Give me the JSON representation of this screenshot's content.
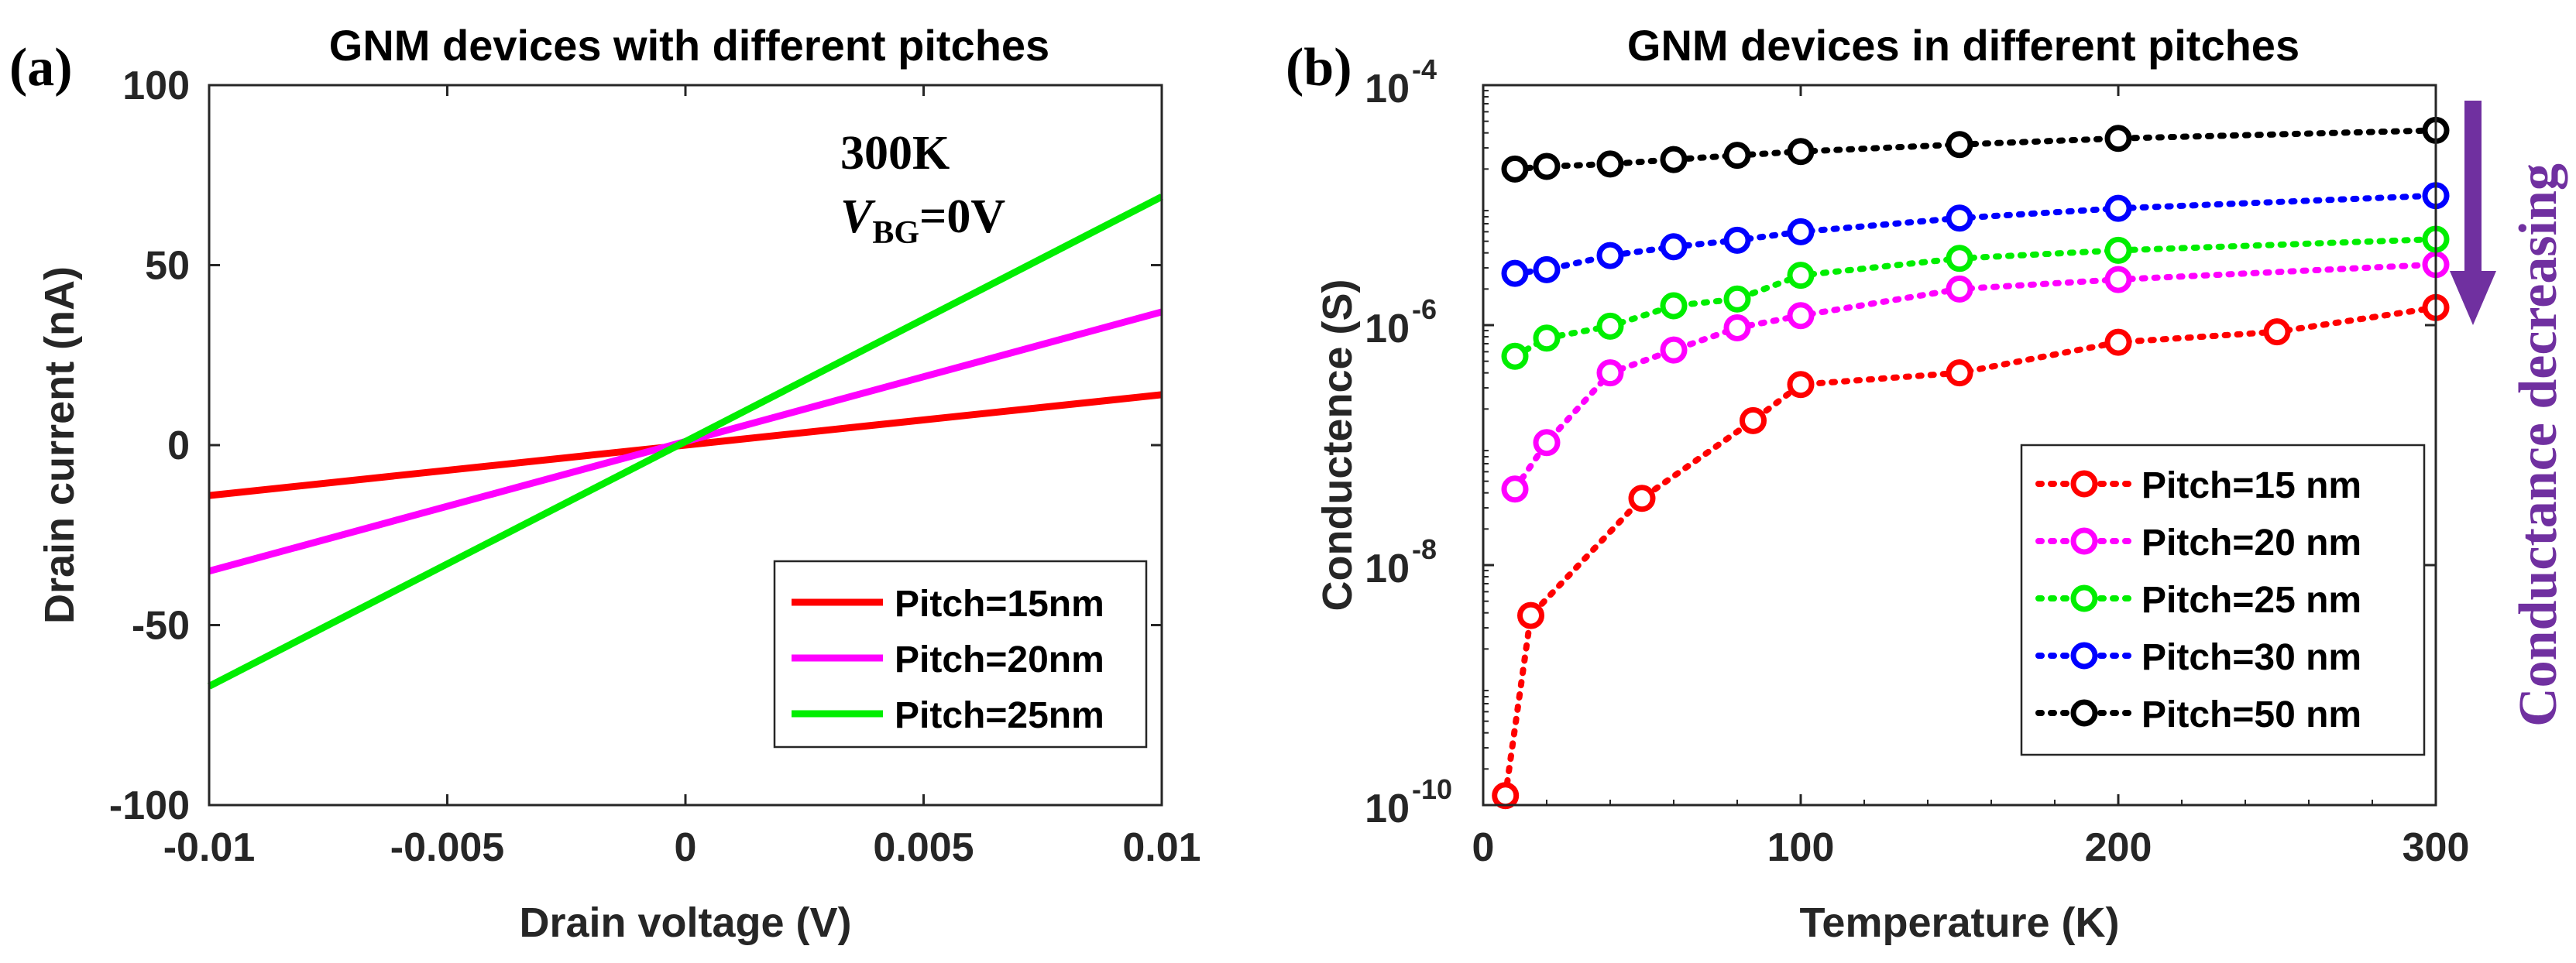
{
  "chart_data": [
    {
      "type": "line",
      "panel_label": "(a)",
      "title": "GNM devices with different pitches",
      "xlabel": "Drain voltage (V)",
      "ylabel": "Drain current (nA)",
      "xlim": [
        -0.01,
        0.01
      ],
      "ylim": [
        -100,
        100
      ],
      "xtick_labels": [
        "-0.01",
        "-0.005",
        "0",
        "0.005",
        "0.01"
      ],
      "xtick_values": [
        -0.01,
        -0.005,
        0,
        0.005,
        0.01
      ],
      "ytick_labels": [
        "-100",
        "-50",
        "0",
        "50",
        "100"
      ],
      "ytick_values": [
        -100,
        -50,
        0,
        50,
        100
      ],
      "legend_position": "bottom-right",
      "annotation": {
        "line1": "300K",
        "v_italic": "V",
        "v_sub": "BG",
        "v_rest": "=0V"
      },
      "series": [
        {
          "name": "Pitch=15nm",
          "color": "#ff0000",
          "x": [
            -0.01,
            0.01
          ],
          "y": [
            -14,
            14
          ]
        },
        {
          "name": "Pitch=20nm",
          "color": "#ff00ff",
          "x": [
            -0.01,
            0.01
          ],
          "y": [
            -35,
            37
          ]
        },
        {
          "name": "Pitch=25nm",
          "color": "#00ee00",
          "x": [
            -0.01,
            0.01
          ],
          "y": [
            -67,
            69
          ]
        }
      ]
    },
    {
      "type": "line",
      "panel_label": "(b)",
      "title": "GNM devices in different pitches",
      "xlabel": "Temperature (K)",
      "ylabel": "Conductence (S)",
      "xlim": [
        0,
        300
      ],
      "ylim": [
        1e-10,
        0.0001
      ],
      "yscale": "log",
      "xtick_labels": [
        "0",
        "100",
        "200",
        "300"
      ],
      "xtick_values": [
        0,
        100,
        200,
        300
      ],
      "ytick_values": [
        1e-10,
        1e-08,
        1e-06,
        0.0001
      ],
      "ytick_base": "10",
      "ytick_exponents": [
        "-10",
        "-8",
        "-6",
        "-4"
      ],
      "legend_position": "bottom-right",
      "side_annotation": "Conductance decreasing",
      "arrow_color": "#7030a0",
      "series": [
        {
          "name": "Pitch=15 nm",
          "color": "#ff0000",
          "x": [
            7,
            15,
            50,
            85,
            100,
            150,
            200,
            250,
            300
          ],
          "y": [
            1.2e-10,
            3.8e-09,
            3.6e-08,
            1.6e-07,
            3.2e-07,
            4e-07,
            7.2e-07,
            8.8e-07,
            1.4e-06
          ]
        },
        {
          "name": "Pitch=20 nm",
          "color": "#ff00ff",
          "x": [
            10,
            20,
            40,
            60,
            80,
            100,
            150,
            200,
            300
          ],
          "y": [
            4.3e-08,
            1.05e-07,
            4e-07,
            6.2e-07,
            9.5e-07,
            1.2e-06,
            2e-06,
            2.4e-06,
            3.2e-06
          ]
        },
        {
          "name": "Pitch=25 nm",
          "color": "#00ee00",
          "x": [
            10,
            20,
            40,
            60,
            80,
            100,
            150,
            200,
            300
          ],
          "y": [
            5.5e-07,
            7.8e-07,
            9.8e-07,
            1.45e-06,
            1.65e-06,
            2.6e-06,
            3.6e-06,
            4.2e-06,
            5.2e-06
          ]
        },
        {
          "name": "Pitch=30 nm",
          "color": "#0000ff",
          "x": [
            10,
            20,
            40,
            60,
            80,
            100,
            150,
            200,
            300
          ],
          "y": [
            2.7e-06,
            2.9e-06,
            3.8e-06,
            4.5e-06,
            5.1e-06,
            6e-06,
            7.8e-06,
            9.4e-06,
            1.2e-05
          ]
        },
        {
          "name": "Pitch=50 nm",
          "color": "#000000",
          "x": [
            10,
            20,
            40,
            60,
            80,
            100,
            150,
            200,
            300
          ],
          "y": [
            2e-05,
            2.1e-05,
            2.2e-05,
            2.4e-05,
            2.6e-05,
            2.8e-05,
            3.2e-05,
            3.6e-05,
            4.2e-05
          ]
        }
      ]
    }
  ]
}
